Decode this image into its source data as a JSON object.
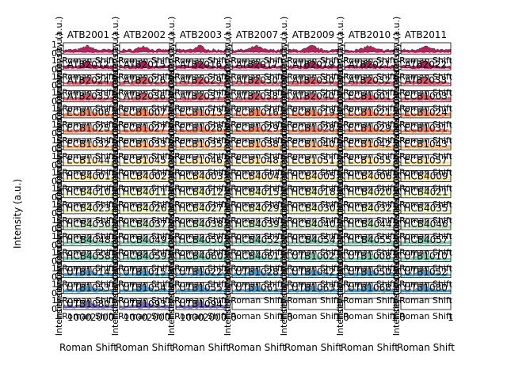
{
  "figure": {
    "type": "spectra-grid",
    "rows": 17,
    "cols": 7,
    "ylabel": "Intensity (a.u.)",
    "xlabel": "Roman Shift",
    "ytick_labels": [
      "0",
      "1"
    ],
    "xtick_labels_numeric": [
      "0",
      "1"
    ],
    "xtick_labels_spectrum": [
      "1000",
      "2000"
    ]
  },
  "chart_data": {
    "type": "line",
    "title_row": [
      "ATB2001",
      "ATB2002",
      "ATB2003",
      "ATB2007",
      "ATB2009",
      "ATB2010",
      "ATB2011"
    ],
    "panel_labels": [
      [
        "ATB2012",
        "ATB2015",
        "ATB2016",
        "ATB2017",
        "ATB2019",
        "ATB2021",
        "ATB2022"
      ],
      [
        "ATB2024",
        "ATB2026",
        "ATB2029",
        "ATB2030",
        "ATB2030",
        "ATB2032",
        "ATB2033"
      ],
      [
        "ATB2035",
        "ATB2036",
        "ATB2037",
        "ATB2038",
        "ATB2040",
        "ECB1001",
        "ECB1003"
      ],
      [
        "ECB1006",
        "ECB1007",
        "ECB1013",
        "ECB1016",
        "ECB1019",
        "ECB1021",
        "ECB1024"
      ],
      [
        "ECB1025",
        "ECB1027",
        "ECB1028",
        "ECB1029",
        "ECB1028",
        "ECB1029",
        "ECB1031"
      ],
      [
        "ECB1032",
        "ECB1033",
        "ECB1035",
        "ECB1038",
        "ECB1040",
        "ECB1042",
        "ECB1043"
      ],
      [
        "ECB1044",
        "ECB1045",
        "ECB1046",
        "ECB1048",
        "ECB1051",
        "ECB1055",
        "ECB1057"
      ],
      [
        "HCB4001",
        "HCB4002",
        "HCB4003",
        "HCB4004",
        "HCB4005",
        "HCB4006",
        "HCB4009"
      ],
      [
        "HCB4010",
        "HCB4011",
        "HCB4012",
        "HCB4015",
        "HCB4018",
        "HCB4020",
        "HCB4021"
      ],
      [
        "HCB4023",
        "HCB4026",
        "HCB4027",
        "HCB4029",
        "HCB4030",
        "HCB4032",
        "HCB4035"
      ],
      [
        "HCB4036",
        "HCB4037",
        "HCB4038",
        "HCB4039",
        "HCB4040",
        "HCB4044",
        "HCB4046"
      ],
      [
        "HCB4048",
        "HCB4049",
        "HCB4050",
        "HCB4052",
        "HCB4054",
        "HCB4055",
        "HCB4057"
      ],
      [
        "HCB4058",
        "HCB4059",
        "HCB4060",
        "HCB4061",
        "UTB1002",
        "UTB1008",
        "UTB1010"
      ],
      [
        "UTB1014",
        "UTB1015",
        "UTB1022",
        "UTB1028",
        "UTB1042",
        "UTB1050",
        "UTB1052"
      ],
      [
        "UTB1053",
        "UTB1054",
        "UTB1055",
        "UTB1061",
        "UTB1063",
        "UTB1068",
        "UTB1080"
      ],
      [
        "UTB1080",
        "UTB1093",
        "UTB1094",
        "",
        "",
        "",
        ""
      ]
    ],
    "series_fill_colors": [
      "#9e0142",
      "#d53e4f",
      "#f46d43",
      "#fdae61",
      "#fee08b",
      "#e6f598",
      "#abdda4",
      "#66c2a5",
      "#3288bd",
      "#5e4fa2"
    ],
    "panels_with_spectrum": 115,
    "ylim": [
      0,
      1
    ],
    "xlim_spectrum": [
      400,
      2600
    ]
  }
}
